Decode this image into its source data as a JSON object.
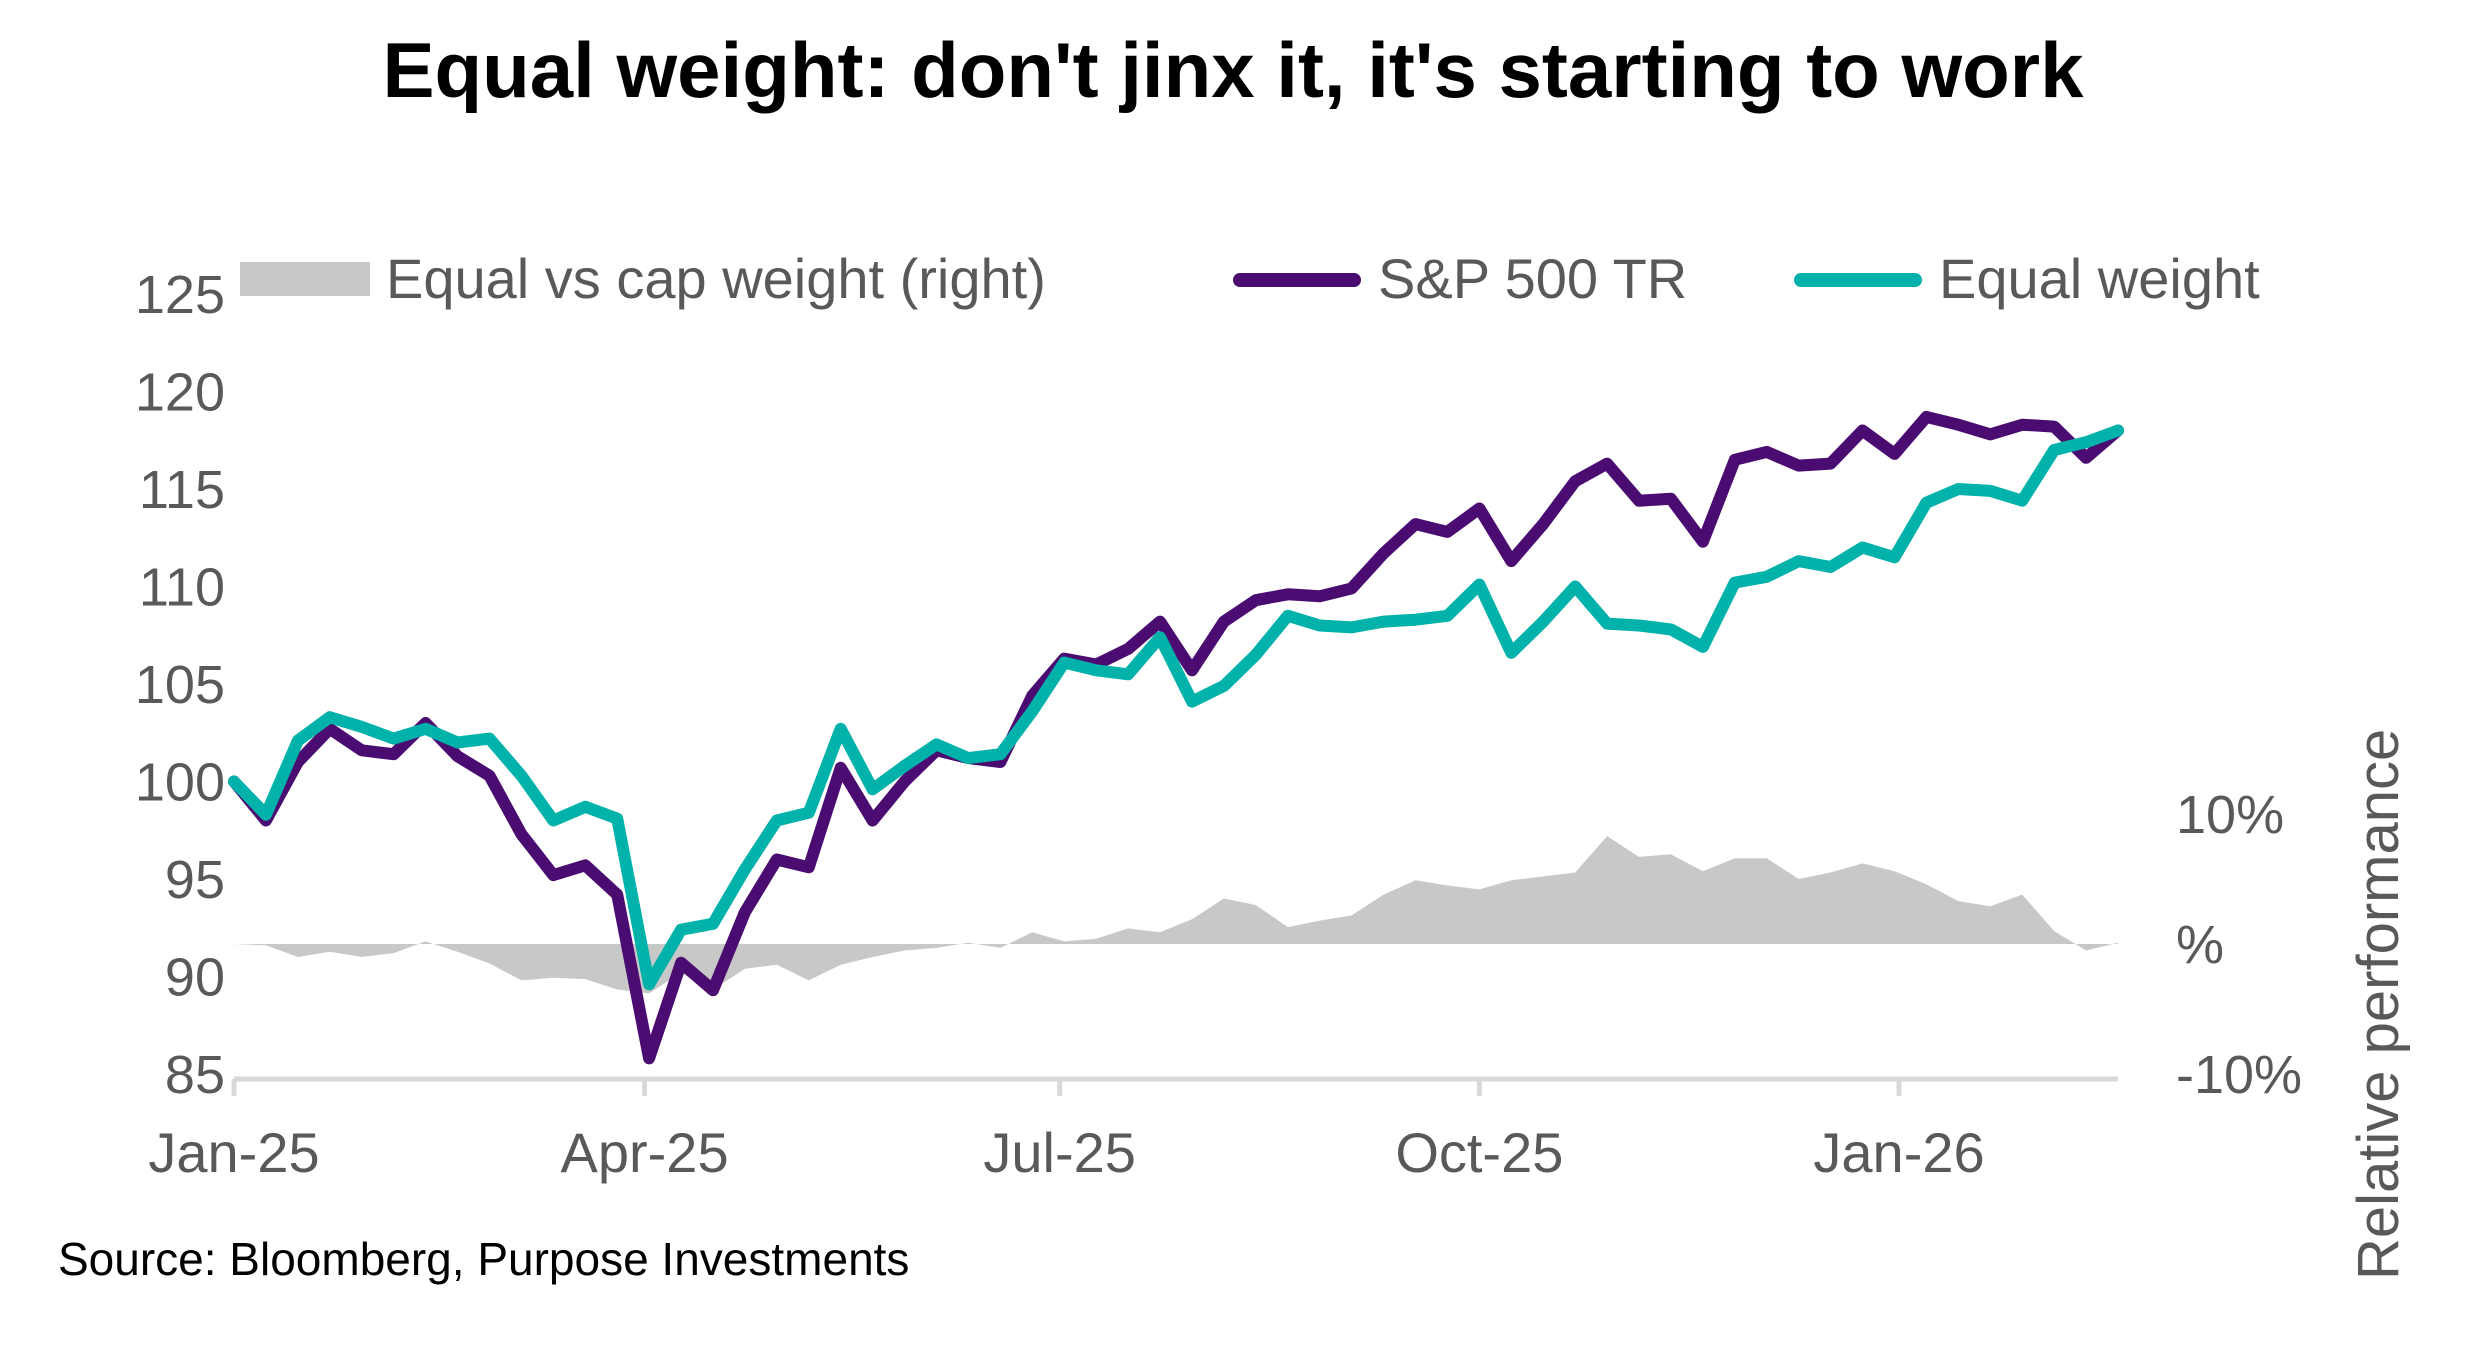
{
  "chart_data": {
    "type": "line",
    "title": "Equal weight: don't jinx it, it's starting to work",
    "source": "Source: Bloomberg, Purpose Investments",
    "x": [
      "2025-01-01",
      "2025-01-08",
      "2025-01-15",
      "2025-01-22",
      "2025-01-29",
      "2025-02-05",
      "2025-02-12",
      "2025-02-19",
      "2025-02-26",
      "2025-03-05",
      "2025-03-12",
      "2025-03-19",
      "2025-03-26",
      "2025-04-02",
      "2025-04-09",
      "2025-04-16",
      "2025-04-23",
      "2025-04-30",
      "2025-05-07",
      "2025-05-14",
      "2025-05-21",
      "2025-05-28",
      "2025-06-04",
      "2025-06-11",
      "2025-06-18",
      "2025-06-25",
      "2025-07-02",
      "2025-07-09",
      "2025-07-16",
      "2025-07-23",
      "2025-07-30",
      "2025-08-06",
      "2025-08-13",
      "2025-08-20",
      "2025-08-27",
      "2025-09-03",
      "2025-09-10",
      "2025-09-17",
      "2025-09-24",
      "2025-10-01",
      "2025-10-08",
      "2025-10-15",
      "2025-10-22",
      "2025-10-29",
      "2025-11-05",
      "2025-11-12",
      "2025-11-19",
      "2025-11-26",
      "2025-12-03",
      "2025-12-10",
      "2025-12-17",
      "2025-12-24",
      "2025-12-31",
      "2026-01-07",
      "2026-01-14",
      "2026-01-21",
      "2026-01-28",
      "2026-02-04",
      "2026-02-11",
      "2026-02-18"
    ],
    "xticks": [
      {
        "date": "2025-01-01",
        "label": "Jan-25"
      },
      {
        "date": "2025-04-01",
        "label": "Apr-25"
      },
      {
        "date": "2025-07-01",
        "label": "Jul-25"
      },
      {
        "date": "2025-10-01",
        "label": "Oct-25"
      },
      {
        "date": "2026-01-01",
        "label": "Jan-26"
      }
    ],
    "y_left": {
      "min": 85,
      "max": 125,
      "ticks": [
        "125",
        "120",
        "115",
        "110",
        "105",
        "100",
        "95",
        "90",
        "85"
      ]
    },
    "y_right": {
      "min": -10,
      "max": 50,
      "label": "Relative performance",
      "ticks": [
        {
          "value": 10,
          "label": "10%"
        },
        {
          "value": 0,
          "label": "%"
        },
        {
          "value": -10,
          "label": "-10%"
        }
      ]
    },
    "grid": false,
    "legend_position": "top",
    "series": [
      {
        "name": "Equal vs cap weight (right)",
        "type": "area",
        "axis": "right",
        "color": "#C8C8C8",
        "values": [
          0,
          -0.1,
          -1,
          -0.6,
          -1,
          -0.7,
          0.2,
          -0.6,
          -1.5,
          -2.8,
          -2.6,
          -2.7,
          -3.5,
          -3.8,
          -2.2,
          -3.5,
          -1.9,
          -1.6,
          -2.8,
          -1.6,
          -1.0,
          -0.5,
          -0.3,
          0.1,
          -0.3,
          0.9,
          0.2,
          0.4,
          1.2,
          0.9,
          1.9,
          3.5,
          3.0,
          1.3,
          1.8,
          2.2,
          3.8,
          4.9,
          4.5,
          4.2,
          4.9,
          5.2,
          5.5,
          8.3,
          6.7,
          6.9,
          5.6,
          6.6,
          6.6,
          5.0,
          5.5,
          6.2,
          5.6,
          4.6,
          3.3,
          2.9,
          3.8,
          1.0,
          -0.5,
          0.1
        ]
      },
      {
        "name": "S&P 500 TR",
        "type": "line",
        "axis": "left",
        "color": "#4B0C72",
        "values": [
          100,
          98,
          101,
          102.7,
          101.6,
          101.4,
          103,
          101.3,
          100.3,
          97.3,
          95.2,
          95.7,
          94.2,
          85.8,
          90.7,
          89.3,
          93.3,
          96,
          95.6,
          100.7,
          98,
          100,
          101.6,
          101.2,
          101,
          104.4,
          106.3,
          106,
          106.8,
          108.2,
          105.7,
          108.2,
          109.3,
          109.6,
          109.5,
          109.9,
          111.7,
          113.2,
          112.8,
          114,
          111.3,
          113.2,
          115.4,
          116.3,
          114.4,
          114.5,
          112.3,
          116.5,
          116.9,
          116.2,
          116.3,
          118,
          116.8,
          118.7,
          118.3,
          117.8,
          118.3,
          118.2,
          116.6,
          118
        ]
      },
      {
        "name": "Equal weight",
        "type": "line",
        "axis": "left",
        "color": "#00B2A9",
        "values": [
          100,
          98.3,
          102.1,
          103.3,
          102.8,
          102.2,
          102.7,
          102,
          102.2,
          100.3,
          98,
          98.7,
          98.1,
          89.6,
          92.4,
          92.7,
          95.5,
          98,
          98.4,
          102.7,
          99.6,
          100.8,
          101.9,
          101.2,
          101.4,
          103.6,
          106.1,
          105.7,
          105.5,
          107.4,
          104.1,
          104.9,
          106.5,
          108.5,
          108,
          107.9,
          108.2,
          108.3,
          108.5,
          110.1,
          106.6,
          108.2,
          110,
          108.1,
          108,
          107.8,
          106.9,
          110.2,
          110.5,
          111.3,
          111,
          112,
          111.5,
          114.3,
          115,
          114.9,
          114.4,
          117,
          117.4,
          118
        ]
      }
    ]
  }
}
